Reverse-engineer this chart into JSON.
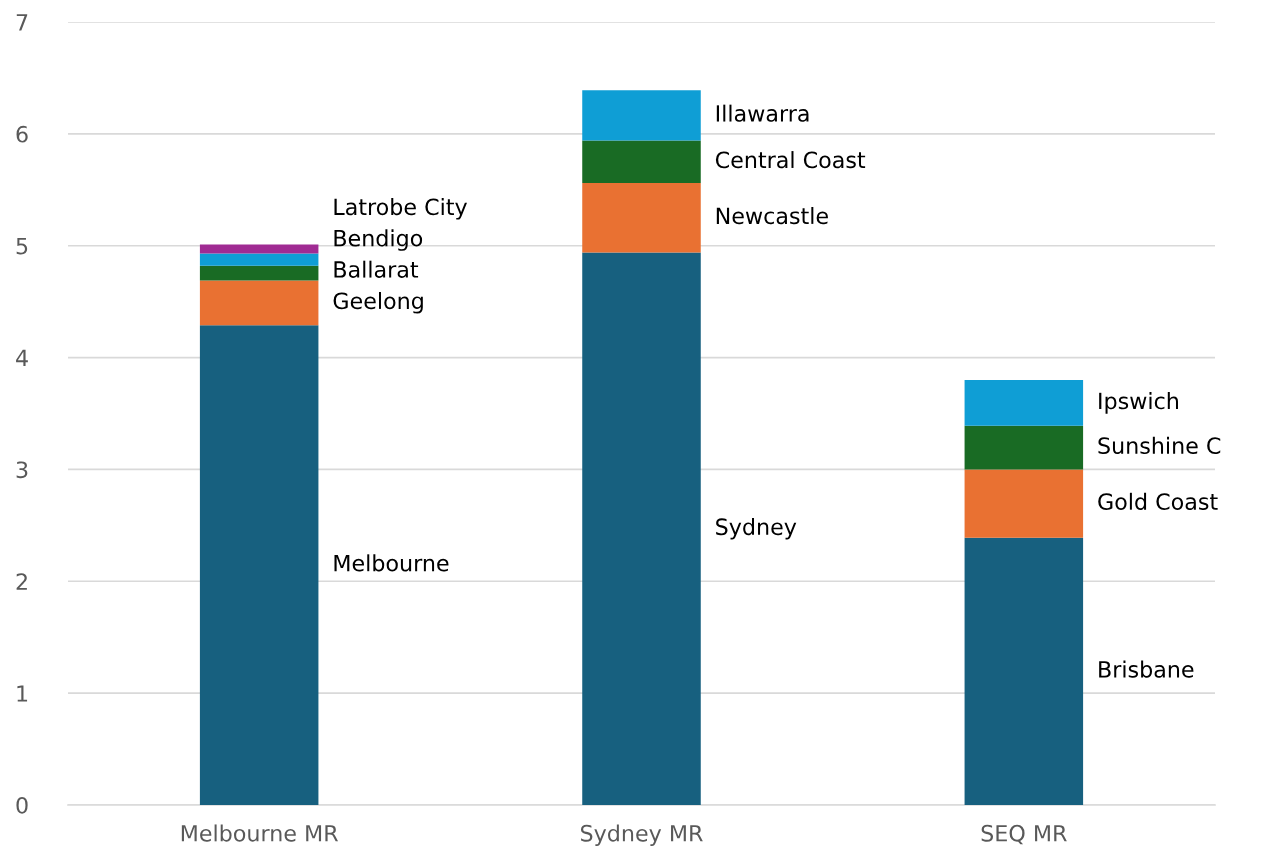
{
  "chart_data": {
    "type": "bar",
    "stacked": true,
    "categories": [
      "Melbourne MR",
      "Sydney MR",
      "SEQ MR"
    ],
    "series": [
      {
        "color": "#17607f",
        "values": [
          4.29,
          4.94,
          2.39
        ]
      },
      {
        "color": "#e97132",
        "values": [
          0.4,
          0.62,
          0.61
        ]
      },
      {
        "color": "#196b24",
        "values": [
          0.13,
          0.38,
          0.39
        ]
      },
      {
        "color": "#0f9ed5",
        "values": [
          0.11,
          0.45,
          0.41
        ]
      },
      {
        "color": "#a02b93",
        "values": [
          0.08,
          null,
          null
        ]
      }
    ],
    "ylim": [
      0,
      7
    ],
    "yticks": [
      0,
      1,
      2,
      3,
      4,
      5,
      6,
      7
    ],
    "grid": "y",
    "legend": false,
    "annotations": [
      "Melbourne",
      "Sydney",
      "Brisbane",
      "Geelong",
      "Newcastle",
      "Gold Coast",
      "Ballarat",
      "Central Coast",
      "Sunshine C",
      "Bendigo",
      "Illawarra",
      "Ipswich",
      "Latrobe City"
    ]
  }
}
